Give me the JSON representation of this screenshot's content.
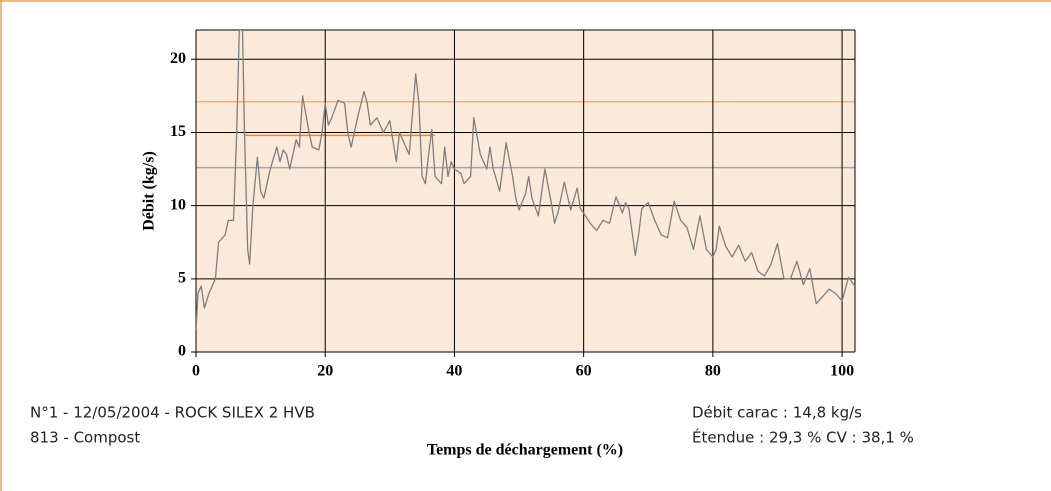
{
  "chart_data": {
    "type": "line",
    "xlabel": "Temps de déchargement (%)",
    "ylabel": "Débit (kg/s)",
    "xlim": [
      0,
      102
    ],
    "ylim": [
      0,
      22
    ],
    "xticks": [
      0,
      20,
      40,
      60,
      80,
      100
    ],
    "yticks": [
      0,
      5,
      10,
      15,
      20
    ],
    "grid": true,
    "background": "#fbe9da",
    "series": [
      {
        "color": "#7f7f7f",
        "x": [
          0,
          0.3,
          0.8,
          1.3,
          2,
          3,
          3.5,
          4.5,
          5,
          5.8,
          6.3,
          6.7,
          7.2,
          7.5,
          8,
          8.3,
          8.8,
          9.5,
          10,
          10.5,
          11.5,
          12.5,
          13,
          13.5,
          14,
          14.5,
          15.5,
          16,
          16.5,
          17.5,
          18,
          19,
          19.5,
          20,
          20.5,
          21,
          22,
          23,
          23.5,
          24,
          25,
          26,
          26.5,
          27,
          28,
          29,
          30,
          31,
          31.5,
          32,
          33,
          34,
          34.5,
          35,
          35.5,
          36,
          36.5,
          37,
          38,
          38.5,
          39,
          39.5,
          40,
          41,
          41.5,
          42.5,
          43,
          44,
          45,
          45.5,
          46,
          47,
          48,
          49,
          49.5,
          50,
          51,
          51.5,
          52,
          53,
          54,
          55,
          55.5,
          56,
          57,
          58,
          59,
          59.5,
          60,
          61,
          62,
          63,
          64,
          65,
          66,
          66.5,
          67,
          68,
          68.5,
          69,
          70,
          71,
          72,
          73,
          74,
          75,
          76,
          77,
          78,
          79,
          80,
          80.5,
          81,
          82,
          83,
          84,
          85,
          86,
          87,
          88,
          89,
          90,
          91,
          92,
          93,
          94,
          95,
          96,
          97,
          98,
          99,
          100,
          101,
          102
        ],
        "values": [
          1.5,
          4,
          4.5,
          3,
          4,
          5,
          7.5,
          8,
          9,
          9,
          15,
          22,
          22,
          15,
          7,
          6,
          10,
          13.3,
          11,
          10.5,
          12.5,
          14,
          13,
          13.8,
          13.5,
          12.5,
          14.5,
          14,
          17.5,
          15,
          14,
          13.8,
          15,
          17,
          15.5,
          16,
          17.2,
          17,
          15,
          14,
          16,
          17.8,
          17,
          15.5,
          16,
          15,
          15.8,
          13,
          15,
          14.5,
          13.5,
          19,
          17,
          12,
          11.5,
          13.5,
          15.2,
          12,
          11.5,
          14,
          12,
          13,
          12.5,
          12.2,
          11.5,
          12,
          16,
          13.5,
          12.5,
          14,
          12.5,
          11,
          14.3,
          12,
          10.5,
          9.7,
          10.8,
          12,
          10.5,
          9.3,
          12.5,
          10.2,
          8.8,
          9.5,
          11.6,
          9.7,
          11.2,
          9.8,
          9.5,
          8.8,
          8.3,
          9,
          8.8,
          10.6,
          9.5,
          10.2,
          9.8,
          6.6,
          8,
          9.8,
          10.2,
          9,
          8,
          7.8,
          10.3,
          9,
          8.5,
          7,
          9.3,
          7,
          6.5,
          7,
          8.6,
          7.2,
          6.5,
          7.3,
          6.2,
          6.8,
          5.5,
          5.2,
          6,
          7.4,
          5,
          5,
          6.2,
          4.6,
          5.7,
          3.3,
          3.8,
          4.3,
          4,
          3.5,
          5.1,
          4.5
        ]
      }
    ],
    "reference_lines": [
      {
        "value": 17.1,
        "color": "#f4b183"
      },
      {
        "value": 14.8,
        "color": "#e88a3c",
        "xrange": [
          7.5,
          37
        ]
      },
      {
        "value": 12.6,
        "color": "#a6a6a6"
      }
    ],
    "annotations": [
      "N°1 - 12/05/2004 - ROCK SILEX 2 HVB",
      "813 - Compost",
      "Débit carac : 14,8 kg/s",
      "Étendue : 29,3 %  CV : 38,1 %"
    ]
  }
}
